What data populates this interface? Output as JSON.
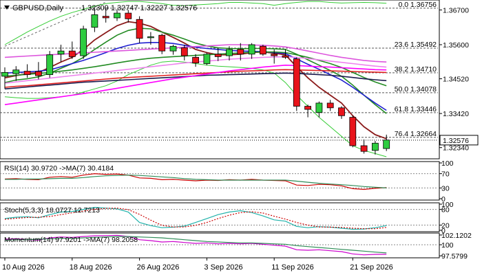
{
  "chart_data": [
    {
      "type": "candlestick",
      "title": "GBPUSD,Daily",
      "ohlc_header": "1.32309 1.32747 1.32227 1.32576",
      "x_tick_labels": [
        "10 Aug 2026",
        "18 Aug 2026",
        "26 Aug 2026",
        "3 Sep 2026",
        "11 Sep 2026",
        "21 Sep 2026"
      ],
      "y_tick_labels": [
        "1.36700",
        "1.35600",
        "1.34520",
        "1.33420",
        "1.32340"
      ],
      "ylim": [
        1.3205,
        1.3695
      ],
      "last_price": "1.32576",
      "fib_levels": [
        {
          "label": "0.0 1.36756",
          "value": 1.36756
        },
        {
          "label": "23.6 1.35492",
          "value": 1.35492
        },
        {
          "label": "38.2 1.34710",
          "value": 1.3471
        },
        {
          "label": "50.0 1.34078",
          "value": 1.34078
        },
        {
          "label": "61.8 1.33446",
          "value": 1.33446
        },
        {
          "label": "76.4 1.32664",
          "value": 1.32664
        }
      ],
      "candles": [
        {
          "o": 1.346,
          "h": 1.3488,
          "l": 1.342,
          "c": 1.3472
        },
        {
          "o": 1.3468,
          "h": 1.3492,
          "l": 1.3445,
          "c": 1.348
        },
        {
          "o": 1.3476,
          "h": 1.3498,
          "l": 1.3455,
          "c": 1.3465
        },
        {
          "o": 1.3475,
          "h": 1.3505,
          "l": 1.345,
          "c": 1.3462
        },
        {
          "o": 1.3465,
          "h": 1.354,
          "l": 1.3455,
          "c": 1.3528
        },
        {
          "o": 1.353,
          "h": 1.356,
          "l": 1.3505,
          "c": 1.354
        },
        {
          "o": 1.354,
          "h": 1.357,
          "l": 1.3515,
          "c": 1.3522
        },
        {
          "o": 1.3525,
          "h": 1.362,
          "l": 1.3515,
          "c": 1.361
        },
        {
          "o": 1.3615,
          "h": 1.3675,
          "l": 1.36,
          "c": 1.3655
        },
        {
          "o": 1.365,
          "h": 1.3676,
          "l": 1.363,
          "c": 1.3645
        },
        {
          "o": 1.3645,
          "h": 1.367,
          "l": 1.3635,
          "c": 1.366
        },
        {
          "o": 1.366,
          "h": 1.367,
          "l": 1.363,
          "c": 1.3642
        },
        {
          "o": 1.364,
          "h": 1.365,
          "l": 1.3565,
          "c": 1.358
        },
        {
          "o": 1.3582,
          "h": 1.36,
          "l": 1.356,
          "c": 1.3585
        },
        {
          "o": 1.359,
          "h": 1.3595,
          "l": 1.353,
          "c": 1.354
        },
        {
          "o": 1.354,
          "h": 1.356,
          "l": 1.3528,
          "c": 1.3555
        },
        {
          "o": 1.355,
          "h": 1.356,
          "l": 1.351,
          "c": 1.3525
        },
        {
          "o": 1.352,
          "h": 1.353,
          "l": 1.349,
          "c": 1.3502
        },
        {
          "o": 1.35,
          "h": 1.3535,
          "l": 1.3495,
          "c": 1.353
        },
        {
          "o": 1.353,
          "h": 1.355,
          "l": 1.3508,
          "c": 1.3522
        },
        {
          "o": 1.3525,
          "h": 1.3555,
          "l": 1.351,
          "c": 1.3545
        },
        {
          "o": 1.3545,
          "h": 1.3565,
          "l": 1.351,
          "c": 1.353
        },
        {
          "o": 1.353,
          "h": 1.3565,
          "l": 1.3515,
          "c": 1.356
        },
        {
          "o": 1.3555,
          "h": 1.356,
          "l": 1.3525,
          "c": 1.353
        },
        {
          "o": 1.353,
          "h": 1.3545,
          "l": 1.35,
          "c": 1.3525
        },
        {
          "o": 1.3525,
          "h": 1.3545,
          "l": 1.3515,
          "c": 1.352
        },
        {
          "o": 1.3515,
          "h": 1.352,
          "l": 1.335,
          "c": 1.3365
        },
        {
          "o": 1.3365,
          "h": 1.337,
          "l": 1.333,
          "c": 1.3355
        },
        {
          "o": 1.3345,
          "h": 1.338,
          "l": 1.333,
          "c": 1.3375
        },
        {
          "o": 1.3375,
          "h": 1.3385,
          "l": 1.335,
          "c": 1.336
        },
        {
          "o": 1.336,
          "h": 1.3365,
          "l": 1.3325,
          "c": 1.3335
        },
        {
          "o": 1.333,
          "h": 1.3335,
          "l": 1.3235,
          "c": 1.324
        },
        {
          "o": 1.324,
          "h": 1.326,
          "l": 1.3215,
          "c": 1.3222
        },
        {
          "o": 1.3225,
          "h": 1.3255,
          "l": 1.3212,
          "c": 1.3248
        },
        {
          "o": 1.3231,
          "h": 1.3275,
          "l": 1.3223,
          "c": 1.3258
        }
      ],
      "moving_averages": [
        {
          "name": "fast",
          "color": "#8b1a1a",
          "values": [
            1.3455,
            1.3462,
            1.3468,
            1.3472,
            1.3488,
            1.3505,
            1.352,
            1.3545,
            1.3575,
            1.3598,
            1.362,
            1.3633,
            1.3628,
            1.3618,
            1.36,
            1.3583,
            1.3565,
            1.3545,
            1.3535,
            1.3528,
            1.3528,
            1.353,
            1.3535,
            1.3537,
            1.3533,
            1.3528,
            1.349,
            1.3455,
            1.3425,
            1.34,
            1.3375,
            1.3335,
            1.33,
            1.3275,
            1.3262
          ]
        },
        {
          "name": "ma2",
          "color": "#228b22",
          "values": [
            1.344,
            1.3448,
            1.3452,
            1.3458,
            1.347,
            1.3485,
            1.35,
            1.352,
            1.3545,
            1.3568,
            1.359,
            1.3605,
            1.3612,
            1.361,
            1.36,
            1.359,
            1.3578,
            1.3565,
            1.3556,
            1.355,
            1.3548,
            1.3547,
            1.3548,
            1.3548,
            1.3547,
            1.3545,
            1.353,
            1.3512,
            1.3495,
            1.3478,
            1.346,
            1.3432,
            1.34,
            1.337,
            1.3342
          ]
        },
        {
          "name": "ma3",
          "color": "#1f1fd0",
          "values": [
            1.347,
            1.3472,
            1.3474,
            1.3476,
            1.348,
            1.349,
            1.35,
            1.351,
            1.3522,
            1.3535,
            1.3548,
            1.3558,
            1.3565,
            1.3567,
            1.3567,
            1.3564,
            1.3558,
            1.3552,
            1.3548,
            1.3545,
            1.3542,
            1.354,
            1.3539,
            1.3538,
            1.3535,
            1.3532,
            1.3515,
            1.3498,
            1.3482,
            1.3465,
            1.3448,
            1.3425,
            1.34,
            1.3375,
            1.3352
          ]
        },
        {
          "name": "ma4",
          "color": "#228b22",
          "values": [
            1.346,
            1.3463,
            1.3466,
            1.3469,
            1.3472,
            1.3476,
            1.348,
            1.3485,
            1.349,
            1.3496,
            1.3502,
            1.3508,
            1.3513,
            1.3517,
            1.352,
            1.3522,
            1.3524,
            1.3526,
            1.3528,
            1.353,
            1.3532,
            1.3534,
            1.3536,
            1.3537,
            1.3537,
            1.3535,
            1.3528,
            1.352,
            1.351,
            1.35,
            1.3488,
            1.3472,
            1.3456,
            1.3442,
            1.343
          ]
        },
        {
          "name": "ma5",
          "color": "#ee82ee",
          "values": [
            1.3438,
            1.3442,
            1.3446,
            1.345,
            1.3454,
            1.3458,
            1.3462,
            1.3466,
            1.347,
            1.3474,
            1.3478,
            1.3482,
            1.3486,
            1.349,
            1.3494,
            1.3498,
            1.3502,
            1.3505,
            1.3508,
            1.3511,
            1.3514,
            1.3516,
            1.3518,
            1.352,
            1.3521,
            1.3522,
            1.352,
            1.3516,
            1.3512,
            1.3508,
            1.3504,
            1.35,
            1.3496,
            1.3492,
            1.3489
          ]
        },
        {
          "name": "ma6",
          "color": "#1a1a4d",
          "values": [
            1.342,
            1.3423,
            1.3426,
            1.3429,
            1.3432,
            1.3435,
            1.3438,
            1.3441,
            1.3443,
            1.3445,
            1.3447,
            1.3449,
            1.3451,
            1.3453,
            1.3455,
            1.3457,
            1.3459,
            1.3461,
            1.3463,
            1.3464,
            1.3465,
            1.3466,
            1.3467,
            1.3468,
            1.3469,
            1.347,
            1.3469,
            1.3467,
            1.3465,
            1.3463,
            1.346,
            1.3456,
            1.3452,
            1.3449,
            1.3446
          ]
        },
        {
          "name": "ma7",
          "color": "#e02020",
          "values": [
            1.3425,
            1.3428,
            1.343,
            1.3433,
            1.3436,
            1.3439,
            1.3442,
            1.3445,
            1.3448,
            1.3451,
            1.3454,
            1.3456,
            1.3458,
            1.346,
            1.3462,
            1.3464,
            1.3466,
            1.3468,
            1.347,
            1.3472,
            1.3474,
            1.3476,
            1.3477,
            1.3478,
            1.348,
            1.3481,
            1.348,
            1.3479,
            1.3478,
            1.3477,
            1.3476,
            1.3475,
            1.3474,
            1.3473,
            1.3472
          ]
        },
        {
          "name": "ma8",
          "color": "#ff00ff",
          "values": [
            1.337,
            1.3375,
            1.338,
            1.3385,
            1.339,
            1.3395,
            1.34,
            1.3405,
            1.341,
            1.3416,
            1.3422,
            1.3428,
            1.3434,
            1.344,
            1.3446,
            1.3452,
            1.3457,
            1.3462,
            1.3467,
            1.3472,
            1.3477,
            1.3481,
            1.3485,
            1.3489,
            1.3492,
            1.3495,
            1.3494,
            1.3492,
            1.349,
            1.3489,
            1.3487,
            1.3485,
            1.3483,
            1.3481,
            1.348
          ]
        },
        {
          "name": "ma9",
          "color": "#dd55dd",
          "values": [
            1.352,
            1.3522,
            1.3524,
            1.3526,
            1.3528,
            1.353,
            1.3532,
            1.3534,
            1.3536,
            1.3538,
            1.354,
            1.3542,
            1.3544,
            1.3546,
            1.3548,
            1.355,
            1.3552,
            1.3554,
            1.3556,
            1.3558,
            1.356,
            1.356,
            1.3559,
            1.3558,
            1.3556,
            1.3553,
            1.3547,
            1.354,
            1.3533,
            1.3526,
            1.352,
            1.3515,
            1.351,
            1.3507,
            1.3505
          ]
        }
      ],
      "bollinger": {
        "color": "#33cc33",
        "upper": [
          1.356,
          1.358,
          1.36,
          1.3618,
          1.3635,
          1.365,
          1.3662,
          1.3672,
          1.3682,
          1.369,
          1.3694,
          1.3697,
          1.3697,
          1.3694,
          1.369,
          1.3685,
          1.3684,
          1.3686,
          1.3688,
          1.369,
          1.3694,
          1.3694,
          1.3692,
          1.369,
          1.3685,
          1.369,
          1.3694,
          1.3697,
          1.3697,
          1.3694,
          1.3692,
          1.3693,
          1.3694,
          1.3693,
          1.3691
        ],
        "lower": [
          1.3395,
          1.3392,
          1.339,
          1.339,
          1.3392,
          1.3395,
          1.34,
          1.341,
          1.342,
          1.343,
          1.3445,
          1.3465,
          1.348,
          1.3495,
          1.3505,
          1.3508,
          1.3505,
          1.35,
          1.3495,
          1.3492,
          1.349,
          1.3488,
          1.3485,
          1.348,
          1.347,
          1.344,
          1.34,
          1.3365,
          1.333,
          1.33,
          1.327,
          1.324,
          1.3225,
          1.3215,
          1.3205
        ]
      }
    },
    {
      "type": "line",
      "title": "RSI(14) 30.9720 ->MA(7) 30.4184",
      "y_tick_labels": [
        "100",
        "70",
        "30",
        "0"
      ],
      "ylim": [
        0,
        100
      ],
      "series": [
        {
          "name": "RSI(14)",
          "color": "#cc0000",
          "values": [
            55,
            56,
            54,
            53,
            60,
            62,
            60,
            66,
            70,
            68,
            69,
            66,
            58,
            57,
            53,
            54,
            52,
            50,
            52,
            51,
            53,
            52,
            54,
            52,
            51,
            50,
            38,
            37,
            40,
            39,
            36,
            28,
            26,
            29,
            31
          ]
        },
        {
          "name": "MA(7)",
          "color": "#2e8b57",
          "values": [
            54,
            54,
            55,
            55,
            56,
            57,
            57,
            59,
            62,
            64,
            65,
            66,
            65,
            63,
            61,
            59,
            56,
            54,
            53,
            52,
            52,
            52,
            52,
            52,
            52,
            52,
            49,
            46,
            43,
            41,
            39,
            37,
            34,
            32,
            30
          ]
        }
      ]
    },
    {
      "type": "line",
      "title": "Stoch(5,3,3) 18.0727 12.7213",
      "y_tick_labels": [
        "100",
        "80",
        "20",
        "0"
      ],
      "ylim": [
        0,
        100
      ],
      "series": [
        {
          "name": "%K",
          "color": "#20b2aa",
          "values": [
            45,
            50,
            52,
            48,
            60,
            70,
            72,
            80,
            88,
            85,
            82,
            70,
            30,
            18,
            10,
            12,
            16,
            30,
            45,
            60,
            70,
            75,
            68,
            55,
            40,
            35,
            15,
            10,
            14,
            12,
            8,
            4,
            5,
            10,
            18
          ]
        },
        {
          "name": "%D",
          "color": "#cc0000",
          "values": [
            42,
            46,
            49,
            50,
            53,
            60,
            67,
            74,
            80,
            84,
            85,
            79,
            61,
            39,
            19,
            13,
            13,
            19,
            30,
            45,
            58,
            68,
            71,
            66,
            54,
            43,
            30,
            20,
            13,
            12,
            11,
            8,
            6,
            6,
            11
          ]
        }
      ]
    },
    {
      "type": "line",
      "title": "Momentum(14) 97.9201 ->MA(7) 98.2058",
      "y_tick_labels": [
        "102.1202",
        "100",
        "97.5799"
      ],
      "ylim": [
        97.45,
        102.25
      ],
      "series": [
        {
          "name": "Momentum(14)",
          "color": "#cc00cc",
          "values": [
            101.2,
            101.3,
            101.1,
            101.0,
            101.5,
            101.7,
            101.6,
            101.8,
            101.95,
            102.0,
            102.05,
            101.8,
            101.1,
            100.9,
            100.6,
            100.7,
            100.5,
            100.3,
            100.4,
            100.2,
            100.3,
            100.2,
            100.3,
            100.1,
            99.9,
            99.7,
            98.9,
            98.8,
            98.9,
            98.7,
            98.5,
            98.0,
            97.8,
            97.9,
            97.92
          ]
        },
        {
          "name": "MA(7)",
          "color": "#2e8b57",
          "values": [
            101.0,
            101.1,
            101.1,
            101.2,
            101.3,
            101.4,
            101.4,
            101.5,
            101.6,
            101.7,
            101.8,
            101.8,
            101.7,
            101.6,
            101.5,
            101.3,
            101.1,
            100.9,
            100.7,
            100.6,
            100.5,
            100.4,
            100.4,
            100.3,
            100.2,
            100.1,
            99.8,
            99.6,
            99.4,
            99.2,
            99.0,
            98.8,
            98.6,
            98.4,
            98.21
          ]
        }
      ]
    }
  ]
}
